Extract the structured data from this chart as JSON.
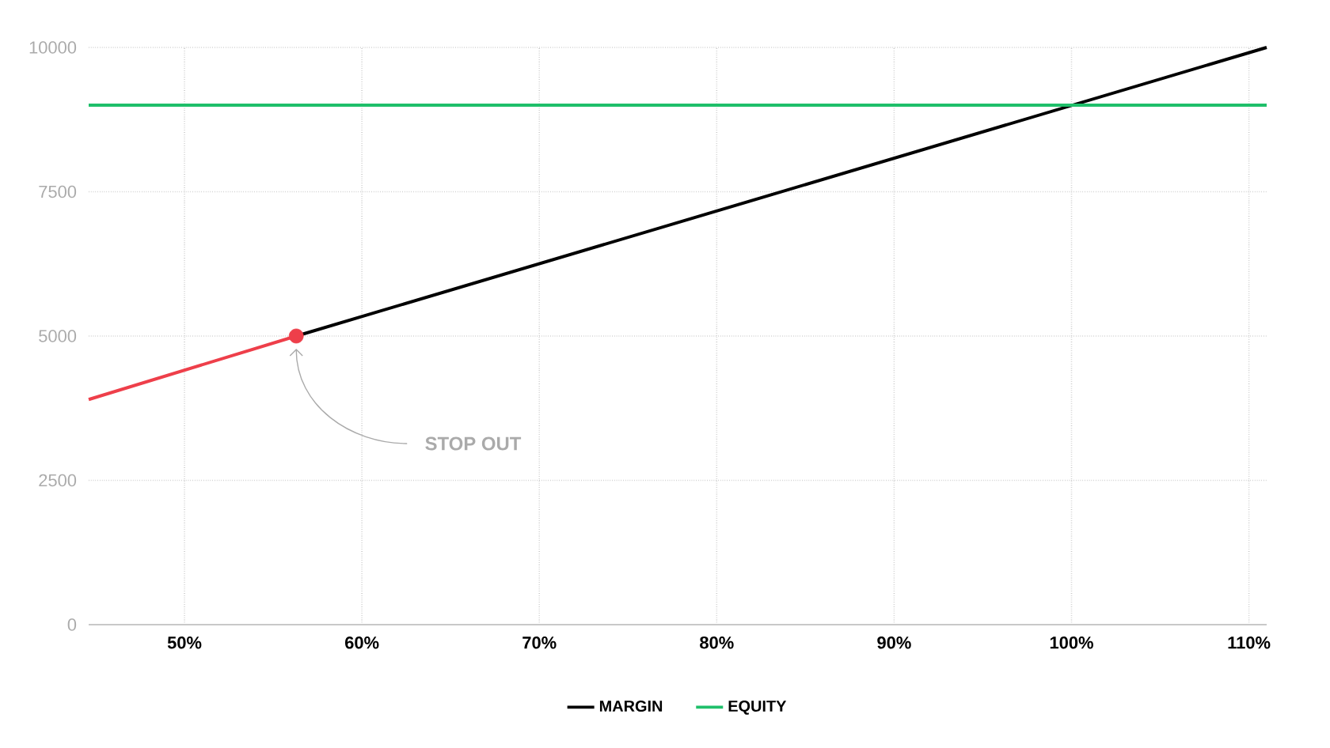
{
  "chart_data": {
    "type": "line",
    "xlim": [
      44.6,
      111
    ],
    "ylim": [
      0,
      10000
    ],
    "xticks": [
      {
        "value": 50,
        "label": "50%"
      },
      {
        "value": 60,
        "label": "60%"
      },
      {
        "value": 70,
        "label": "70%"
      },
      {
        "value": 80,
        "label": "80%"
      },
      {
        "value": 90,
        "label": "90%"
      },
      {
        "value": 100,
        "label": "100%"
      },
      {
        "value": 110,
        "label": "110%"
      }
    ],
    "yticks": [
      0,
      2500,
      5000,
      7500,
      10000
    ],
    "grid": true,
    "legend": "bottom",
    "series": [
      {
        "color": "#ee3f4a",
        "x": [
          44.6,
          56.3
        ],
        "values": [
          3900,
          5000
        ]
      },
      {
        "name": "MARGIN",
        "color": "#000000",
        "x": [
          56.3,
          111
        ],
        "values": [
          5000,
          10000
        ]
      },
      {
        "name": "EQUITY",
        "color": "#1fbf6a",
        "x": [
          44.6,
          111
        ],
        "values": [
          9000,
          9000
        ]
      },
      {
        "type": "scatter",
        "marker": "circle",
        "color": "#ee3f4a",
        "x": [
          56.3
        ],
        "values": [
          5000
        ]
      }
    ],
    "annotations": [
      {
        "text": "STOP OUT",
        "x": 56.3,
        "y": 5000
      }
    ]
  }
}
